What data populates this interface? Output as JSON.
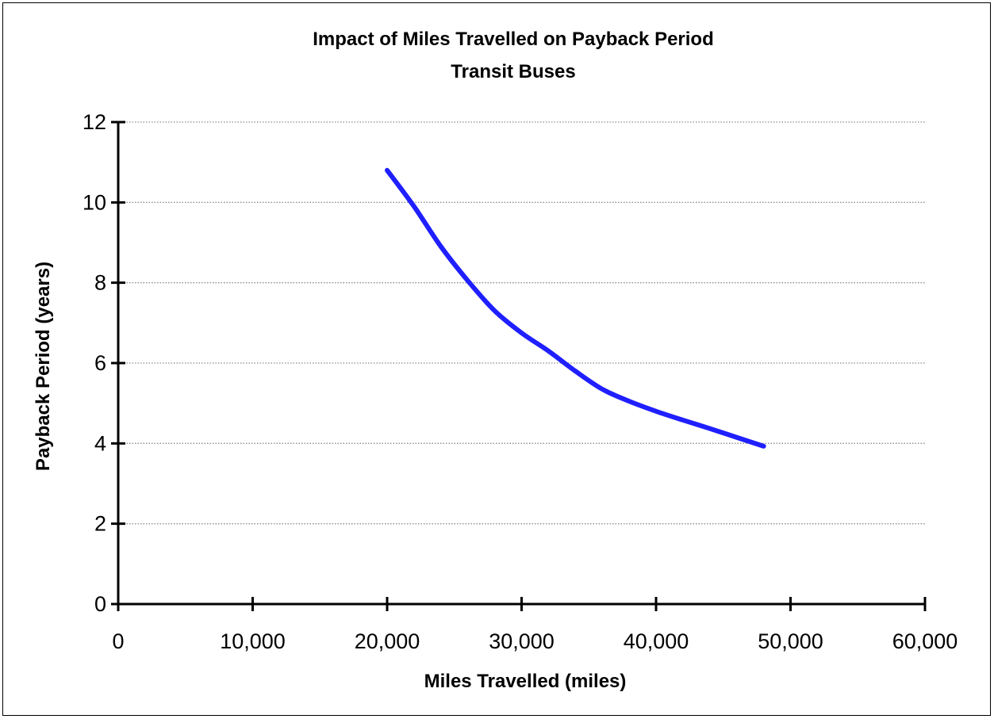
{
  "chart_data": {
    "type": "line",
    "title": "Impact of Miles Travelled on Payback Period",
    "subtitle": "Transit Buses",
    "xlabel": "Miles Travelled (miles)",
    "ylabel": "Payback Period (years)",
    "xlim": [
      0,
      60000
    ],
    "ylim": [
      0,
      12
    ],
    "xticks": [
      0,
      10000,
      20000,
      30000,
      40000,
      50000,
      60000
    ],
    "xtick_labels": [
      "0",
      "10,000",
      "20,000",
      "30,000",
      "40,000",
      "50,000",
      "60,000"
    ],
    "yticks": [
      0,
      2,
      4,
      6,
      8,
      10,
      12
    ],
    "ytick_labels": [
      "0",
      "2",
      "4",
      "6",
      "8",
      "10",
      "12"
    ],
    "grid": "horizontal-dotted",
    "legend": "none",
    "series": [
      {
        "color": "#1f1fff",
        "x": [
          20000,
          22000,
          24000,
          26000,
          28000,
          30000,
          32000,
          34000,
          36000,
          38000,
          40000,
          42000,
          44000,
          46000,
          48000
        ],
        "y": [
          10.8,
          9.9,
          8.9,
          8.05,
          7.3,
          6.75,
          6.3,
          5.8,
          5.35,
          5.05,
          4.8,
          4.58,
          4.37,
          4.15,
          3.93
        ]
      }
    ]
  }
}
